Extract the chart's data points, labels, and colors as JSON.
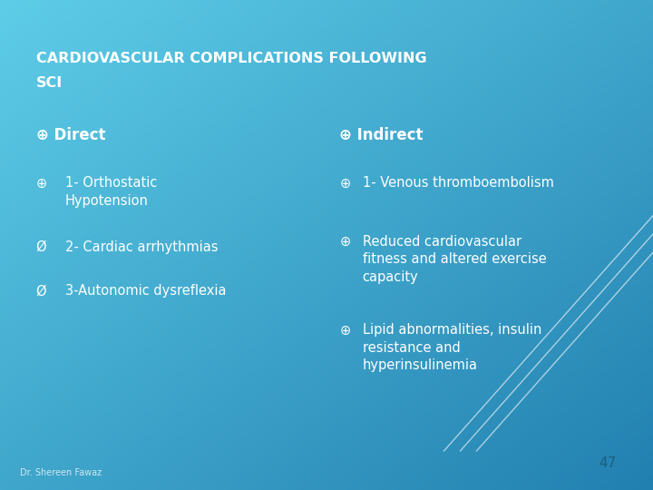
{
  "title_line1": "CARDIOVASCULAR COMPLICATIONS FOLLOWING",
  "title_line2": "SCI",
  "bg_color_tl": "#5ecde8",
  "bg_color_br": "#2280b0",
  "title_color": "#ffffff",
  "title_fontsize": 11.5,
  "title_bold": true,
  "left_header": "⊕ Direct",
  "left_items": [
    [
      "⊕",
      "1- Orthostatic\nHypotension"
    ],
    [
      "Ø",
      "2- Cardiac arrhythmias"
    ],
    [
      "Ø",
      "3-Autonomic dysreflexia"
    ]
  ],
  "right_header": "⊕ Indirect",
  "right_items": [
    [
      "⊕",
      "1- Venous thromboembolism"
    ],
    [
      "⊕",
      "Reduced cardiovascular\nfitness and altered exercise\ncapacity"
    ],
    [
      "⊕",
      "Lipid abnormalities, insulin\nresistance and\nhyperinsulinemia"
    ]
  ],
  "text_color": "#ffffff",
  "header_fontsize": 12,
  "item_fontsize": 10.5,
  "footer_text": "Dr. Shereen Fawaz",
  "page_number": "47",
  "footer_fontsize": 7,
  "page_fontsize": 11,
  "page_color": "#1a5f80",
  "line_color": "#ffffff",
  "line_alpha": 0.6
}
